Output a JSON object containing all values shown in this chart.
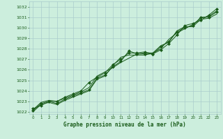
{
  "title": "Graphe pression niveau de la mer (hPa)",
  "bg_color": "#cceedd",
  "grid_color": "#aacccc",
  "line_color": "#1a5c1a",
  "marker_color": "#1a5c1a",
  "text_color": "#1a5c1a",
  "xlim": [
    -0.5,
    23.5
  ],
  "ylim": [
    1021.8,
    1032.5
  ],
  "yticks": [
    1022,
    1023,
    1024,
    1025,
    1026,
    1027,
    1028,
    1029,
    1030,
    1031,
    1032
  ],
  "xticks": [
    0,
    1,
    2,
    3,
    4,
    5,
    6,
    7,
    8,
    9,
    10,
    11,
    12,
    13,
    14,
    15,
    16,
    17,
    18,
    19,
    20,
    21,
    22,
    23
  ],
  "series": [
    {
      "x": [
        0,
        1,
        2,
        3,
        4,
        5,
        6,
        7,
        8,
        9,
        10,
        11,
        12,
        13,
        14,
        15,
        16,
        17,
        18,
        19,
        20,
        21,
        22,
        23
      ],
      "y": [
        1022.1,
        1022.8,
        1023.0,
        1022.8,
        1023.2,
        1023.5,
        1023.8,
        1024.1,
        1025.2,
        1025.5,
        1026.3,
        1026.8,
        1027.8,
        1027.5,
        1027.5,
        1027.5,
        1028.2,
        1028.7,
        1029.6,
        1030.0,
        1030.2,
        1031.0,
        1031.0,
        1031.5
      ],
      "marker": true
    },
    {
      "x": [
        0,
        1,
        2,
        3,
        4,
        5,
        6,
        7,
        8,
        9,
        10,
        11,
        12,
        13,
        14,
        15,
        16,
        17,
        18,
        19,
        20,
        21,
        22,
        23
      ],
      "y": [
        1022.2,
        1022.9,
        1023.1,
        1023.0,
        1023.3,
        1023.6,
        1023.9,
        1024.3,
        1025.4,
        1025.8,
        1026.2,
        1026.7,
        1027.1,
        1027.5,
        1027.6,
        1027.6,
        1028.0,
        1028.9,
        1029.5,
        1029.9,
        1030.3,
        1030.9,
        1031.1,
        1031.6
      ],
      "marker": false
    },
    {
      "x": [
        0,
        1,
        2,
        3,
        4,
        5,
        6,
        7,
        8,
        9,
        10,
        11,
        12,
        13,
        14,
        15,
        16,
        17,
        18,
        19,
        20,
        21,
        22,
        23
      ],
      "y": [
        1022.0,
        1022.7,
        1022.9,
        1022.7,
        1023.1,
        1023.4,
        1023.7,
        1024.0,
        1025.1,
        1025.4,
        1026.4,
        1027.2,
        1027.4,
        1027.4,
        1027.4,
        1027.6,
        1028.3,
        1028.6,
        1029.7,
        1030.1,
        1030.1,
        1030.8,
        1030.9,
        1031.3
      ],
      "marker": false
    },
    {
      "x": [
        0,
        1,
        2,
        3,
        4,
        5,
        6,
        7,
        8,
        9,
        10,
        11,
        12,
        13,
        14,
        15,
        16,
        17,
        18,
        19,
        20,
        21,
        22,
        23
      ],
      "y": [
        1022.3,
        1022.6,
        1023.0,
        1023.0,
        1023.4,
        1023.7,
        1024.0,
        1024.8,
        1025.3,
        1025.7,
        1026.5,
        1027.0,
        1027.6,
        1027.6,
        1027.7,
        1027.5,
        1027.9,
        1028.5,
        1029.3,
        1030.2,
        1030.4,
        1030.7,
        1031.2,
        1031.8
      ],
      "marker": true
    }
  ]
}
